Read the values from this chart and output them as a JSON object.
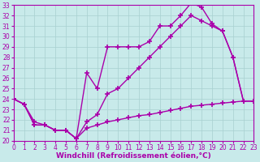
{
  "xlabel": "Windchill (Refroidissement éolien,°C)",
  "xlim": [
    0,
    23
  ],
  "ylim": [
    20,
    33
  ],
  "xticks": [
    0,
    1,
    2,
    3,
    4,
    5,
    6,
    7,
    8,
    9,
    10,
    11,
    12,
    13,
    14,
    15,
    16,
    17,
    18,
    19,
    20,
    21,
    22,
    23
  ],
  "yticks": [
    20,
    21,
    22,
    23,
    24,
    25,
    26,
    27,
    28,
    29,
    30,
    31,
    32,
    33
  ],
  "background_color": "#c8eaea",
  "grid_color": "#a8d0d0",
  "line_color": "#aa00aa",
  "line_width": 1.0,
  "marker": "+",
  "marker_size": 4,
  "curve1_x": [
    0,
    1,
    2,
    3,
    4,
    5,
    6,
    7,
    8,
    9,
    10,
    11,
    12,
    13,
    14,
    15,
    16,
    17,
    18,
    19,
    20,
    21,
    22,
    23
  ],
  "curve1_y": [
    24.0,
    23.5,
    21.5,
    21.5,
    21.0,
    21.0,
    20.2,
    26.5,
    25.0,
    29.0,
    29.0,
    29.0,
    29.0,
    29.5,
    31.0,
    31.0,
    32.0,
    33.2,
    32.8,
    31.2,
    30.5,
    28.0,
    23.8,
    23.8
  ],
  "curve2_x": [
    0,
    1,
    2,
    3,
    4,
    5,
    6,
    7,
    8,
    9,
    10,
    11,
    12,
    13,
    14,
    15,
    16,
    17,
    18,
    19,
    20,
    21,
    22,
    23
  ],
  "curve2_y": [
    24.0,
    23.5,
    21.5,
    21.5,
    21.0,
    21.0,
    20.2,
    21.8,
    22.5,
    24.5,
    25.0,
    26.0,
    27.0,
    28.0,
    29.0,
    30.0,
    31.0,
    32.0,
    31.5,
    31.0,
    30.5,
    28.0,
    23.8,
    23.8
  ],
  "curve3_x": [
    0,
    1,
    2,
    3,
    4,
    5,
    6,
    7,
    8,
    9,
    10,
    11,
    12,
    13,
    14,
    15,
    16,
    17,
    18,
    19,
    20,
    21,
    22,
    23
  ],
  "curve3_y": [
    24.0,
    23.5,
    21.8,
    21.5,
    21.0,
    21.0,
    20.2,
    21.2,
    21.5,
    21.8,
    22.0,
    22.2,
    22.4,
    22.5,
    22.7,
    22.9,
    23.1,
    23.3,
    23.4,
    23.5,
    23.6,
    23.7,
    23.8,
    23.8
  ],
  "tick_fontsize": 5.5,
  "xlabel_fontsize": 6.5
}
